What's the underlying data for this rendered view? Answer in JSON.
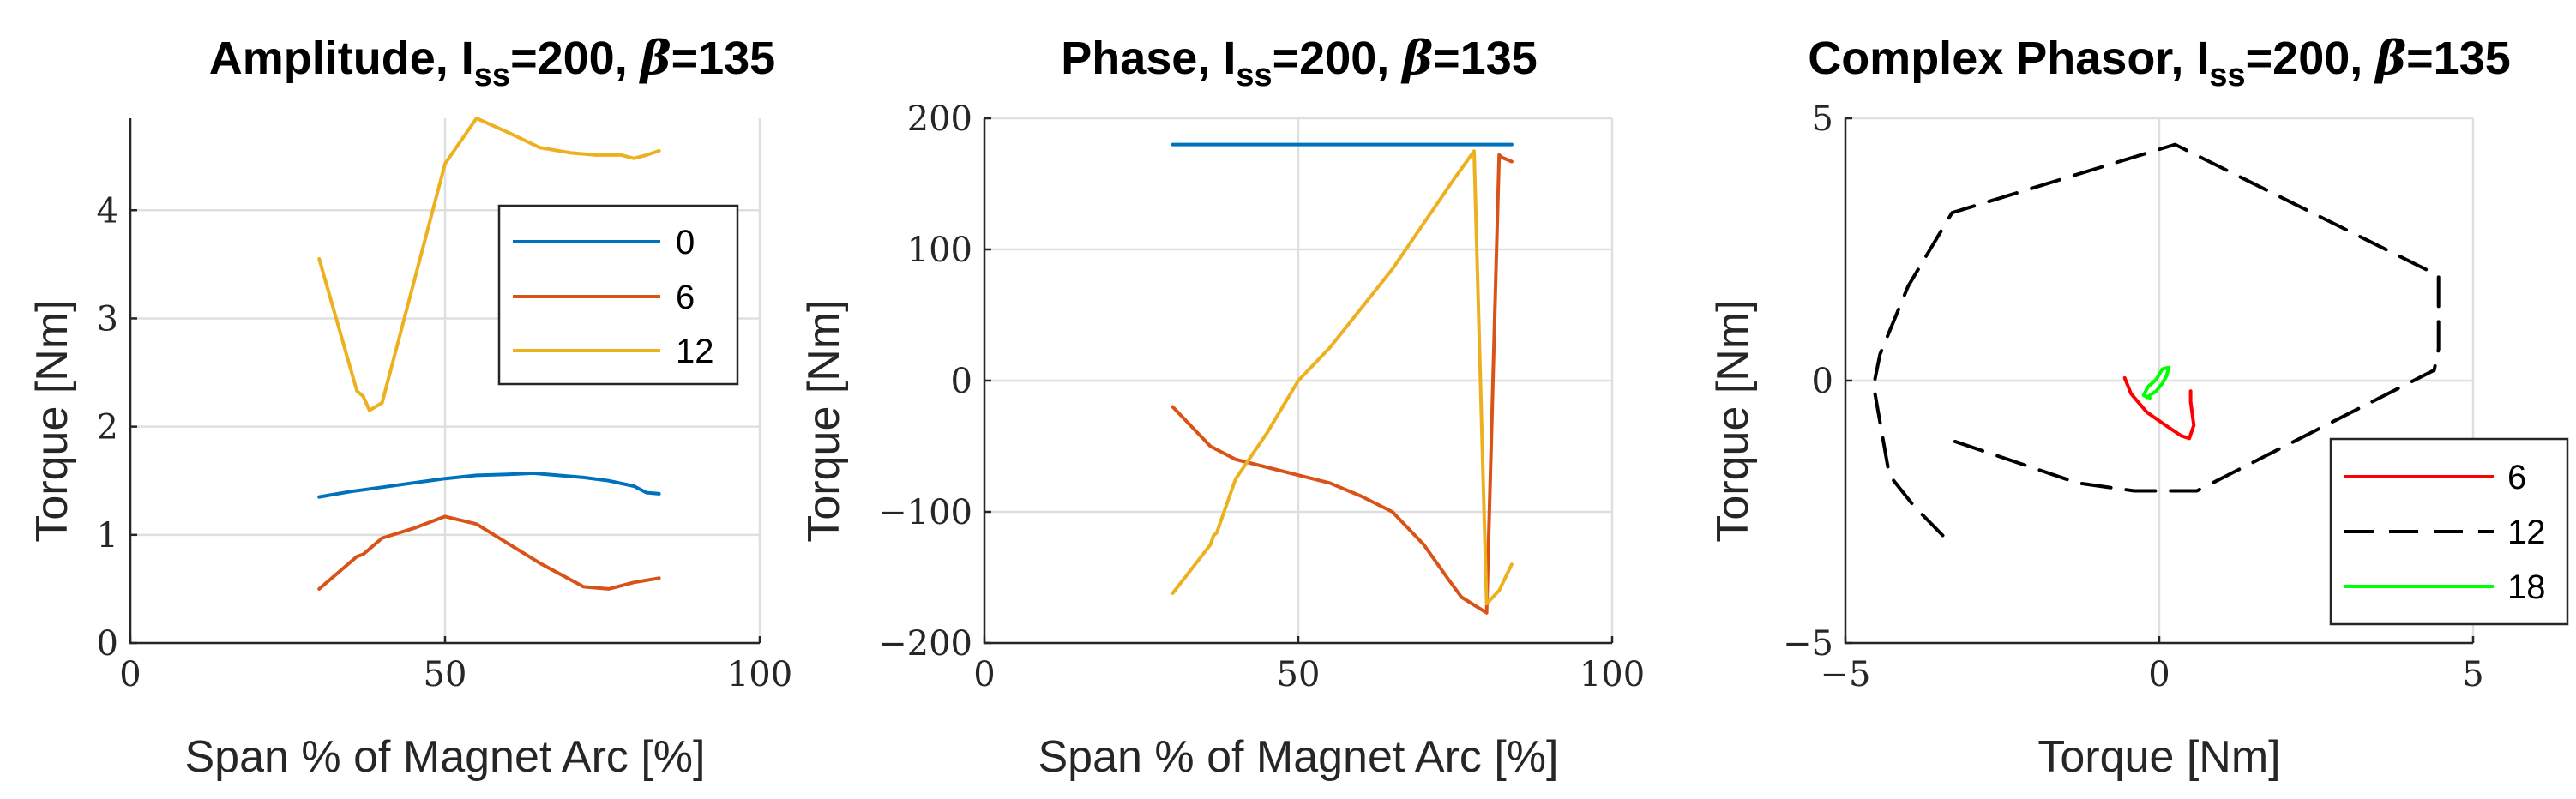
{
  "chart_data": [
    {
      "type": "line",
      "title": {
        "main": "Amplitude, I",
        "sub": "ss",
        "mid": "=200, ",
        "beta": "β",
        "tail": "=135"
      },
      "xlabel": "Span % of Magnet Arc [%]",
      "ylabel": "Torque [Nm]",
      "xlim": [
        0,
        100
      ],
      "ylim": [
        0,
        4.85
      ],
      "xticks": [
        0,
        50,
        100
      ],
      "yticks": [
        0,
        1,
        2,
        3,
        4
      ],
      "grid": true,
      "legend_position": "top-right",
      "series": [
        {
          "name": "0",
          "color": "#0072BD",
          "dash": "solid",
          "x": [
            30,
            35,
            40,
            45,
            50,
            55,
            60,
            64,
            68,
            72,
            76,
            80,
            82,
            84
          ],
          "y": [
            1.35,
            1.4,
            1.44,
            1.48,
            1.52,
            1.55,
            1.56,
            1.57,
            1.55,
            1.53,
            1.5,
            1.45,
            1.39,
            1.38
          ]
        },
        {
          "name": "6",
          "color": "#D95319",
          "dash": "solid",
          "x": [
            30,
            36,
            37,
            40,
            45,
            50,
            55,
            60,
            65,
            72,
            76,
            80,
            84
          ],
          "y": [
            0.5,
            0.8,
            0.82,
            0.97,
            1.06,
            1.17,
            1.1,
            0.92,
            0.74,
            0.52,
            0.5,
            0.56,
            0.6
          ]
        },
        {
          "name": "12",
          "color": "#EDB120",
          "dash": "solid",
          "x": [
            30,
            36,
            37,
            38,
            40,
            50,
            55,
            60,
            65,
            70,
            74,
            78,
            80,
            82,
            84
          ],
          "y": [
            3.55,
            2.33,
            2.28,
            2.15,
            2.22,
            4.43,
            4.85,
            4.72,
            4.58,
            4.53,
            4.51,
            4.51,
            4.48,
            4.51,
            4.55
          ]
        }
      ]
    },
    {
      "type": "line",
      "title": {
        "main": "Phase, I",
        "sub": "ss",
        "mid": "=200, ",
        "beta": "β",
        "tail": "=135"
      },
      "xlabel": "Span % of Magnet Arc [%]",
      "ylabel": "Torque [Nm]",
      "xlim": [
        0,
        100
      ],
      "ylim": [
        -200,
        200
      ],
      "xticks": [
        0,
        50,
        100
      ],
      "yticks": [
        -200,
        -100,
        0,
        100,
        200
      ],
      "grid": true,
      "series": [
        {
          "name": "0",
          "color": "#0072BD",
          "dash": "solid",
          "x": [
            30,
            84
          ],
          "y": [
            180,
            180
          ]
        },
        {
          "name": "6",
          "color": "#D95319",
          "dash": "solid",
          "x": [
            30,
            35,
            36,
            40,
            45,
            50,
            55,
            60,
            65,
            70,
            74,
            76,
            80,
            82,
            82.5,
            84
          ],
          "y": [
            -20,
            -45,
            -50,
            -60,
            -66,
            -72,
            -78,
            -88,
            -100,
            -125,
            -152,
            -165,
            -177,
            172,
            170,
            167
          ]
        },
        {
          "name": "12",
          "color": "#EDB120",
          "dash": "solid",
          "x": [
            30,
            36,
            36.5,
            37,
            40,
            45,
            50,
            55,
            60,
            65,
            70,
            75,
            78,
            80,
            82,
            84
          ],
          "y": [
            -162,
            -125,
            -118,
            -116,
            -75,
            -40,
            0,
            25,
            55,
            85,
            120,
            155,
            175,
            -170,
            -160,
            -140
          ]
        }
      ]
    },
    {
      "type": "line",
      "title": {
        "main": "Complex Phasor, I",
        "sub": "ss",
        "mid": "=200, ",
        "beta": "β",
        "tail": "=135"
      },
      "xlabel": "Torque [Nm]",
      "ylabel": "Torque [Nm]",
      "xlim": [
        -5,
        5
      ],
      "ylim": [
        -5,
        5
      ],
      "xticks": [
        -5,
        0,
        5
      ],
      "yticks": [
        -5,
        0,
        5
      ],
      "grid": true,
      "legend_position": "bottom-right",
      "series": [
        {
          "name": "6",
          "color": "#FF0000",
          "dash": "solid",
          "x": [
            -0.55,
            -0.45,
            -0.2,
            0.1,
            0.35,
            0.48,
            0.55,
            0.5,
            0.5
          ],
          "y": [
            0.05,
            -0.25,
            -0.6,
            -0.85,
            -1.05,
            -1.1,
            -0.85,
            -0.4,
            -0.2
          ]
        },
        {
          "name": "12",
          "color": "#000000",
          "dash": "dashed",
          "x": [
            -3.45,
            -3.9,
            -4.3,
            -4.55,
            -4.45,
            -4.0,
            -3.3,
            0.25,
            4.45,
            4.45,
            4.38,
            0.6,
            -0.4,
            -1.3,
            -3.4
          ],
          "y": [
            -2.95,
            -2.4,
            -1.8,
            -0.1,
            0.5,
            1.8,
            3.2,
            4.5,
            2.0,
            0.6,
            0.2,
            -2.1,
            -2.1,
            -1.95,
            -1.1
          ]
        },
        {
          "name": "18",
          "color": "#00FF00",
          "dash": "solid",
          "x": [
            -0.2,
            -0.05,
            0.05,
            0.12,
            0.15,
            0.05,
            -0.05,
            -0.18,
            -0.25,
            -0.15
          ],
          "y": [
            -0.32,
            -0.2,
            -0.05,
            0.1,
            0.25,
            0.22,
            0.02,
            -0.12,
            -0.28,
            -0.33
          ]
        }
      ]
    }
  ]
}
